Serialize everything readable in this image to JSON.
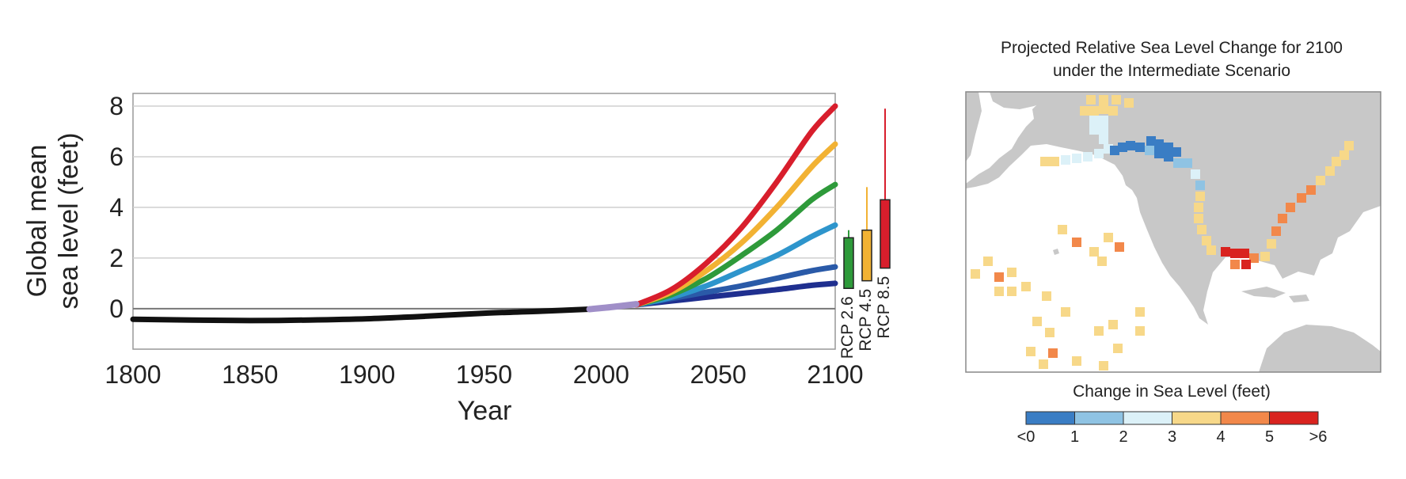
{
  "chart_data": [
    {
      "type": "line",
      "title": "",
      "xlabel": "Year",
      "ylabel_lines": [
        "Global mean",
        "sea level (feet)"
      ],
      "xlim": [
        1800,
        2100
      ],
      "ylim": [
        -1.6,
        8.5
      ],
      "x_ticks": [
        1800,
        1850,
        1900,
        1950,
        2000,
        2050,
        2100
      ],
      "y_ticks": [
        0,
        2,
        4,
        6,
        8
      ],
      "grid": "horizontal",
      "historical": {
        "color": "#111111",
        "x": [
          1800,
          1825,
          1850,
          1875,
          1900,
          1925,
          1950,
          1975,
          1995
        ],
        "values": [
          -0.42,
          -0.45,
          -0.47,
          -0.45,
          -0.4,
          -0.3,
          -0.18,
          -0.1,
          -0.02
        ]
      },
      "observed_recent": {
        "color": "#a08fc8",
        "x": [
          1995,
          2005,
          2015
        ],
        "values": [
          -0.02,
          0.07,
          0.18
        ]
      },
      "series": [
        {
          "color": "#1f2f8f",
          "x": [
            2015,
            2030,
            2045,
            2060,
            2075,
            2090,
            2100
          ],
          "values": [
            0.15,
            0.3,
            0.45,
            0.6,
            0.75,
            0.92,
            1.0
          ]
        },
        {
          "color": "#2a5aa8",
          "x": [
            2015,
            2030,
            2045,
            2060,
            2075,
            2090,
            2100
          ],
          "values": [
            0.15,
            0.4,
            0.65,
            0.9,
            1.2,
            1.5,
            1.65
          ]
        },
        {
          "color": "#2e95cc",
          "x": [
            2015,
            2030,
            2045,
            2060,
            2075,
            2090,
            2100
          ],
          "values": [
            0.15,
            0.45,
            0.9,
            1.5,
            2.1,
            2.85,
            3.3
          ]
        },
        {
          "color": "#2e9a3a",
          "x": [
            2015,
            2030,
            2045,
            2060,
            2075,
            2090,
            2100
          ],
          "values": [
            0.15,
            0.55,
            1.2,
            2.1,
            3.1,
            4.3,
            4.9
          ]
        },
        {
          "color": "#f2b233",
          "x": [
            2015,
            2030,
            2045,
            2060,
            2075,
            2090,
            2100
          ],
          "values": [
            0.15,
            0.65,
            1.5,
            2.6,
            4.0,
            5.6,
            6.5
          ]
        },
        {
          "color": "#d81e2c",
          "x": [
            2015,
            2030,
            2045,
            2060,
            2075,
            2090,
            2100
          ],
          "values": [
            0.15,
            0.75,
            1.8,
            3.2,
            5.0,
            7.0,
            8.0
          ]
        }
      ],
      "ranges": [
        {
          "label": "RCP 2.6",
          "color": "#2e9a3a",
          "whisker": [
            0.8,
            3.1
          ],
          "box": [
            0.8,
            2.8
          ]
        },
        {
          "label": "RCP 4.5",
          "color": "#f2b233",
          "whisker": [
            1.1,
            4.8
          ],
          "box": [
            1.1,
            3.1
          ]
        },
        {
          "label": "RCP 8.5",
          "color": "#d81e2c",
          "whisker": [
            1.6,
            7.9
          ],
          "box": [
            1.6,
            4.3
          ]
        }
      ]
    },
    {
      "type": "heatmap",
      "title_lines": [
        "Projected Relative Sea Level Change for 2100",
        "under the Intermediate Scenario"
      ],
      "legend_title": "Change in Sea Level (feet)",
      "legend_labels": [
        "<0",
        "1",
        "2",
        "3",
        "4",
        "5",
        ">6"
      ],
      "legend_colors": [
        "#3a7dc4",
        "#8fc3e3",
        "#dcf1f8",
        "#f7d889",
        "#f2884a",
        "#d9231f"
      ],
      "land_color": "#c8c8c8",
      "ocean_color": "#ffffff"
    }
  ]
}
